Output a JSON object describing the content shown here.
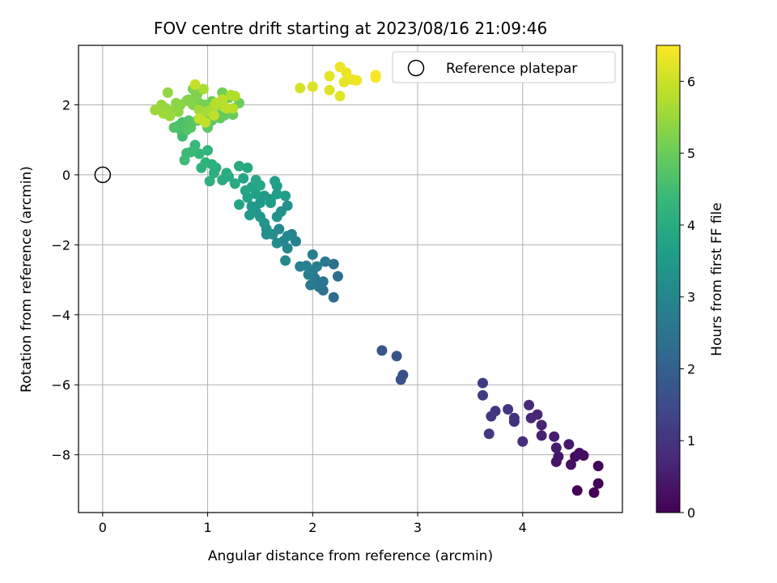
{
  "chart_data": {
    "type": "scatter",
    "title": "FOV centre drift starting at 2023/08/16 21:09:46",
    "xlabel": "Angular distance from reference (arcmin)",
    "ylabel": "Rotation from reference (arcmin)",
    "xlim": [
      -0.23,
      4.95
    ],
    "ylim": [
      -9.65,
      3.7
    ],
    "xticks": [
      0,
      1,
      2,
      3,
      4
    ],
    "yticks": [
      -8,
      -6,
      -4,
      -2,
      0,
      2
    ],
    "grid": true,
    "legend": {
      "placement": "top-right",
      "entries": [
        "Reference platepar"
      ]
    },
    "reference_point": {
      "x": 0,
      "y": 0,
      "label": "Reference platepar"
    },
    "colorbar": {
      "label": "Hours from first FF file",
      "range": [
        0,
        6.5
      ],
      "ticks": [
        0,
        1,
        2,
        3,
        4,
        5,
        6
      ],
      "colormap": "viridis"
    },
    "points": [
      [
        4.52,
        -9.02,
        0.02
      ],
      [
        4.68,
        -9.08,
        0.05
      ],
      [
        4.72,
        -8.82,
        0.08
      ],
      [
        4.72,
        -8.32,
        0.12
      ],
      [
        4.58,
        -8.02,
        0.18
      ],
      [
        4.5,
        -8.05,
        0.22
      ],
      [
        4.54,
        -7.95,
        0.28
      ],
      [
        4.46,
        -8.28,
        0.3
      ],
      [
        4.32,
        -8.2,
        0.35
      ],
      [
        4.34,
        -8.05,
        0.4
      ],
      [
        4.44,
        -7.7,
        0.45
      ],
      [
        4.32,
        -7.8,
        0.5
      ],
      [
        4.3,
        -7.48,
        0.55
      ],
      [
        4.18,
        -7.45,
        0.6
      ],
      [
        4.18,
        -7.15,
        0.65
      ],
      [
        4.14,
        -6.85,
        0.7
      ],
      [
        4.08,
        -6.95,
        0.75
      ],
      [
        4.06,
        -6.58,
        0.8
      ],
      [
        4.0,
        -7.62,
        0.85
      ],
      [
        3.92,
        -7.05,
        0.9
      ],
      [
        3.92,
        -6.95,
        0.95
      ],
      [
        3.86,
        -6.7,
        1.0
      ],
      [
        3.74,
        -6.75,
        1.05
      ],
      [
        3.7,
        -6.9,
        1.08
      ],
      [
        3.68,
        -7.4,
        1.1
      ],
      [
        3.62,
        -6.3,
        1.15
      ],
      [
        3.62,
        -5.95,
        1.18
      ],
      [
        2.86,
        -5.72,
        1.6
      ],
      [
        2.84,
        -5.85,
        1.65
      ],
      [
        2.8,
        -5.18,
        1.7
      ],
      [
        2.66,
        -5.02,
        1.75
      ],
      [
        2.2,
        -3.5,
        2.3
      ],
      [
        2.24,
        -2.9,
        2.35
      ],
      [
        2.2,
        -2.55,
        2.4
      ],
      [
        2.1,
        -3.3,
        2.45
      ],
      [
        2.1,
        -3.05,
        2.5
      ],
      [
        2.06,
        -3.2,
        2.55
      ],
      [
        2.12,
        -2.48,
        2.6
      ],
      [
        2.02,
        -2.95,
        2.65
      ],
      [
        1.98,
        -3.15,
        2.7
      ],
      [
        2.0,
        -2.75,
        2.72
      ],
      [
        1.96,
        -2.85,
        2.75
      ],
      [
        2.04,
        -2.62,
        2.78
      ],
      [
        2.0,
        -2.28,
        2.8
      ],
      [
        1.94,
        -2.6,
        2.82
      ],
      [
        1.88,
        -2.62,
        2.85
      ],
      [
        1.84,
        -1.9,
        2.9
      ],
      [
        1.8,
        -1.7,
        2.95
      ],
      [
        1.76,
        -2.1,
        3.0
      ],
      [
        1.72,
        -1.9,
        3.02
      ],
      [
        1.68,
        -1.55,
        3.05
      ],
      [
        1.76,
        -1.75,
        3.08
      ],
      [
        1.74,
        -2.45,
        3.1
      ],
      [
        1.66,
        -1.95,
        3.15
      ],
      [
        1.62,
        -1.7,
        3.18
      ],
      [
        1.56,
        -1.7,
        3.2
      ],
      [
        1.56,
        -1.55,
        3.25
      ],
      [
        1.7,
        -1.05,
        3.28
      ],
      [
        1.76,
        -0.88,
        3.3
      ],
      [
        1.66,
        -1.2,
        3.32
      ],
      [
        1.54,
        -1.38,
        3.35
      ],
      [
        1.5,
        -1.2,
        3.38
      ],
      [
        1.46,
        -1.05,
        3.4
      ],
      [
        1.42,
        -0.9,
        3.45
      ],
      [
        1.4,
        -1.15,
        3.48
      ],
      [
        1.5,
        -0.8,
        3.5
      ],
      [
        1.54,
        -0.6,
        3.52
      ],
      [
        1.6,
        -0.7,
        3.55
      ],
      [
        1.6,
        -0.8,
        3.58
      ],
      [
        1.66,
        -0.55,
        3.6
      ],
      [
        1.66,
        -0.32,
        3.62
      ],
      [
        1.74,
        -0.6,
        3.65
      ],
      [
        1.64,
        -0.18,
        3.68
      ],
      [
        1.46,
        -0.55,
        3.7
      ],
      [
        1.42,
        -0.35,
        3.72
      ],
      [
        1.38,
        -0.65,
        3.75
      ],
      [
        1.3,
        -0.85,
        3.78
      ],
      [
        1.34,
        -0.1,
        3.8
      ],
      [
        1.36,
        -0.45,
        3.82
      ],
      [
        1.5,
        -0.3,
        3.85
      ],
      [
        1.46,
        -0.15,
        3.88
      ],
      [
        1.38,
        0.2,
        3.9
      ],
      [
        1.3,
        0.25,
        3.92
      ],
      [
        1.26,
        -0.25,
        3.95
      ],
      [
        1.2,
        -0.05,
        3.98
      ],
      [
        1.18,
        0.05,
        4.0
      ],
      [
        1.14,
        -0.15,
        4.02
      ],
      [
        1.08,
        0.2,
        4.05
      ],
      [
        1.06,
        0.05,
        4.08
      ],
      [
        1.04,
        0.3,
        4.1
      ],
      [
        1.02,
        -0.18,
        4.12
      ],
      [
        0.98,
        0.35,
        4.15
      ],
      [
        0.94,
        0.2,
        4.2
      ],
      [
        1.0,
        0.7,
        4.25
      ],
      [
        0.92,
        0.6,
        4.3
      ],
      [
        0.88,
        0.85,
        4.35
      ],
      [
        0.84,
        0.65,
        4.4
      ],
      [
        0.8,
        0.62,
        4.42
      ],
      [
        0.78,
        0.42,
        4.45
      ],
      [
        0.76,
        1.1,
        4.5
      ],
      [
        0.74,
        1.3,
        4.55
      ],
      [
        0.76,
        1.5,
        4.6
      ],
      [
        0.72,
        1.4,
        4.65
      ],
      [
        0.68,
        1.35,
        4.7
      ],
      [
        0.8,
        1.28,
        4.72
      ],
      [
        0.82,
        1.55,
        4.75
      ],
      [
        0.84,
        1.35,
        4.78
      ],
      [
        0.9,
        1.55,
        4.8
      ],
      [
        0.96,
        1.6,
        4.82
      ],
      [
        1.0,
        1.35,
        4.85
      ],
      [
        1.04,
        1.55,
        4.88
      ],
      [
        1.08,
        1.8,
        4.9
      ],
      [
        1.12,
        1.62,
        4.92
      ],
      [
        1.16,
        1.7,
        4.95
      ],
      [
        1.24,
        1.72,
        4.98
      ],
      [
        1.3,
        2.05,
        5.0
      ],
      [
        1.2,
        2.2,
        5.02
      ],
      [
        1.14,
        2.35,
        5.05
      ],
      [
        1.1,
        1.98,
        5.08
      ],
      [
        1.04,
        2.1,
        5.1
      ],
      [
        0.98,
        2.0,
        5.12
      ],
      [
        0.92,
        2.05,
        5.15
      ],
      [
        0.88,
        2.2,
        5.18
      ],
      [
        0.86,
        2.45,
        5.2
      ],
      [
        0.9,
        2.3,
        5.22
      ],
      [
        0.82,
        2.15,
        5.25
      ],
      [
        0.86,
        2.0,
        5.28
      ],
      [
        0.8,
        2.12,
        5.3
      ],
      [
        0.74,
        2.0,
        5.32
      ],
      [
        0.7,
        2.05,
        5.35
      ],
      [
        0.72,
        1.8,
        5.38
      ],
      [
        0.66,
        1.82,
        5.4
      ],
      [
        0.62,
        2.35,
        5.42
      ],
      [
        0.6,
        1.9,
        5.45
      ],
      [
        0.56,
        2.0,
        5.48
      ],
      [
        0.64,
        1.68,
        5.5
      ],
      [
        0.5,
        1.85,
        5.52
      ],
      [
        0.58,
        1.75,
        5.55
      ],
      [
        0.92,
        1.85,
        5.58
      ],
      [
        0.94,
        1.7,
        5.6
      ],
      [
        1.0,
        1.82,
        5.62
      ],
      [
        0.96,
        2.45,
        5.65
      ],
      [
        1.06,
        1.95,
        5.68
      ],
      [
        1.12,
        2.0,
        5.7
      ],
      [
        1.22,
        2.28,
        5.72
      ],
      [
        1.26,
        2.25,
        5.75
      ],
      [
        1.24,
        1.9,
        5.78
      ],
      [
        1.08,
        2.05,
        5.8
      ],
      [
        1.14,
        2.15,
        5.82
      ],
      [
        1.18,
        1.9,
        5.85
      ],
      [
        1.06,
        1.7,
        5.88
      ],
      [
        0.98,
        1.5,
        5.9
      ],
      [
        0.92,
        1.6,
        5.92
      ],
      [
        0.88,
        2.58,
        5.95
      ],
      [
        1.88,
        2.48,
        6.1
      ],
      [
        2.0,
        2.52,
        6.15
      ],
      [
        2.16,
        2.42,
        6.2
      ],
      [
        2.26,
        2.25,
        6.22
      ],
      [
        2.16,
        2.82,
        6.25
      ],
      [
        2.3,
        2.65,
        6.28
      ],
      [
        2.38,
        2.72,
        6.3
      ],
      [
        2.32,
        2.92,
        6.32
      ],
      [
        2.26,
        3.08,
        6.35
      ],
      [
        2.42,
        2.7,
        6.38
      ],
      [
        2.6,
        2.78,
        6.42
      ],
      [
        2.6,
        2.85,
        6.46
      ]
    ]
  }
}
